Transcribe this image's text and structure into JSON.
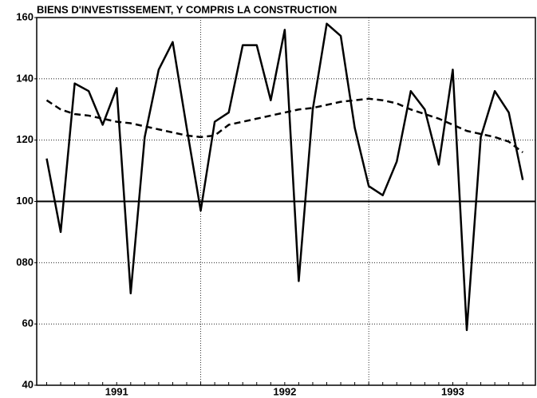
{
  "chart_data": {
    "type": "line",
    "title": "BIENS D'INVESTISSEMENT, Y COMPRIS LA CONSTRUCTION",
    "categories": [
      null,
      null,
      null,
      null,
      null,
      null,
      null,
      null,
      null,
      null,
      null,
      null,
      null,
      null,
      null,
      null,
      null,
      null,
      null,
      null,
      null,
      null,
      null,
      null,
      null,
      null,
      null,
      null,
      null,
      null,
      null,
      null,
      null,
      null,
      null
    ],
    "year_labels": [
      "1991",
      "1992",
      "1993"
    ],
    "series": [
      {
        "style": "solid",
        "color": "#000000",
        "values": [
          114,
          90,
          138.5,
          136,
          125,
          137,
          70,
          121,
          143,
          152,
          124,
          97,
          126,
          129,
          151,
          151,
          133,
          156,
          74,
          130,
          158,
          154,
          124,
          105,
          102,
          113,
          136,
          130,
          112,
          143,
          58,
          121,
          136,
          129,
          107
        ]
      },
      {
        "style": "dashed",
        "color": "#000000",
        "values": [
          133,
          130,
          128.5,
          128,
          127,
          126,
          125.5,
          124.5,
          123.5,
          122.5,
          121.5,
          121,
          121.5,
          125,
          126,
          127,
          128,
          129,
          130,
          130.5,
          131.5,
          132.5,
          133,
          133.5,
          133,
          132,
          130,
          128.5,
          127,
          125,
          123,
          122,
          121,
          119.5,
          116
        ]
      }
    ],
    "ylim": [
      40,
      160
    ],
    "yticks": [
      40,
      60,
      {
        "value": 80,
        "label": "080"
      },
      100,
      120,
      140,
      160
    ],
    "reference_line": 100,
    "grid": true
  }
}
